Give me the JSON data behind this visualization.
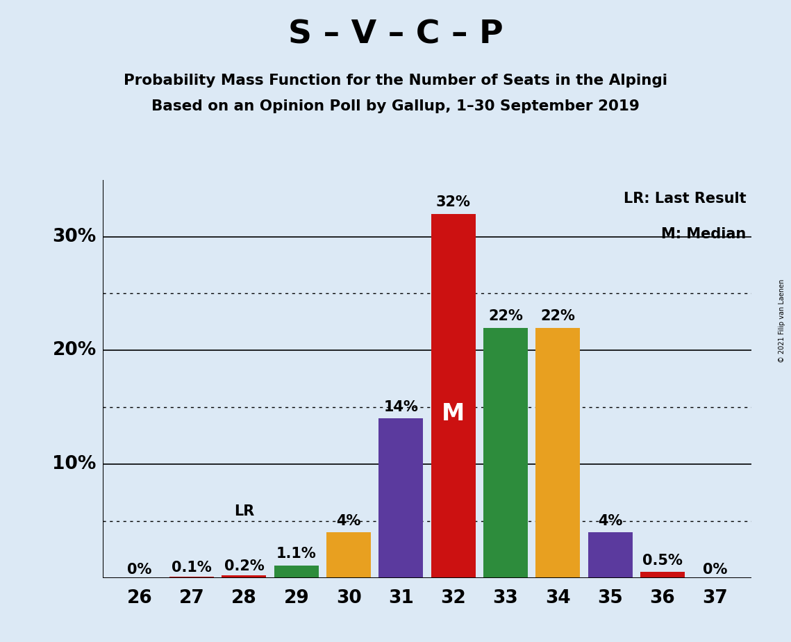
{
  "title": "S – V – C – P",
  "subtitle1": "Probability Mass Function for the Number of Seats in the Alpingi",
  "subtitle2": "Based on an Opinion Poll by Gallup, 1–30 September 2019",
  "copyright": "© 2021 Filip van Laenen",
  "legend_lr": "LR: Last Result",
  "legend_m": "M: Median",
  "seats": [
    26,
    27,
    28,
    29,
    30,
    31,
    32,
    33,
    34,
    35,
    36,
    37
  ],
  "values": [
    0.0,
    0.1,
    0.2,
    1.1,
    4.0,
    14.0,
    32.0,
    22.0,
    22.0,
    4.0,
    0.5,
    0.0
  ],
  "labels": [
    "0%",
    "0.1%",
    "0.2%",
    "1.1%",
    "4%",
    "14%",
    "32%",
    "22%",
    "22%",
    "4%",
    "0.5%",
    "0%"
  ],
  "bar_colors": [
    "#cc1111",
    "#cc1111",
    "#cc1111",
    "#2d8c3c",
    "#e8a020",
    "#5b3a9e",
    "#cc1111",
    "#2d8c3c",
    "#e8a020",
    "#5b3a9e",
    "#cc1111",
    "#cc1111"
  ],
  "median_seat": 32,
  "lr_seat": 28,
  "background_color": "#dce9f5",
  "ylim_max": 35,
  "dotted_ticks": [
    5,
    15,
    25
  ],
  "solid_ticks": [
    10,
    20,
    30
  ],
  "ytick_labels": {
    "10": "10%",
    "20": "20%",
    "30": "30%"
  }
}
